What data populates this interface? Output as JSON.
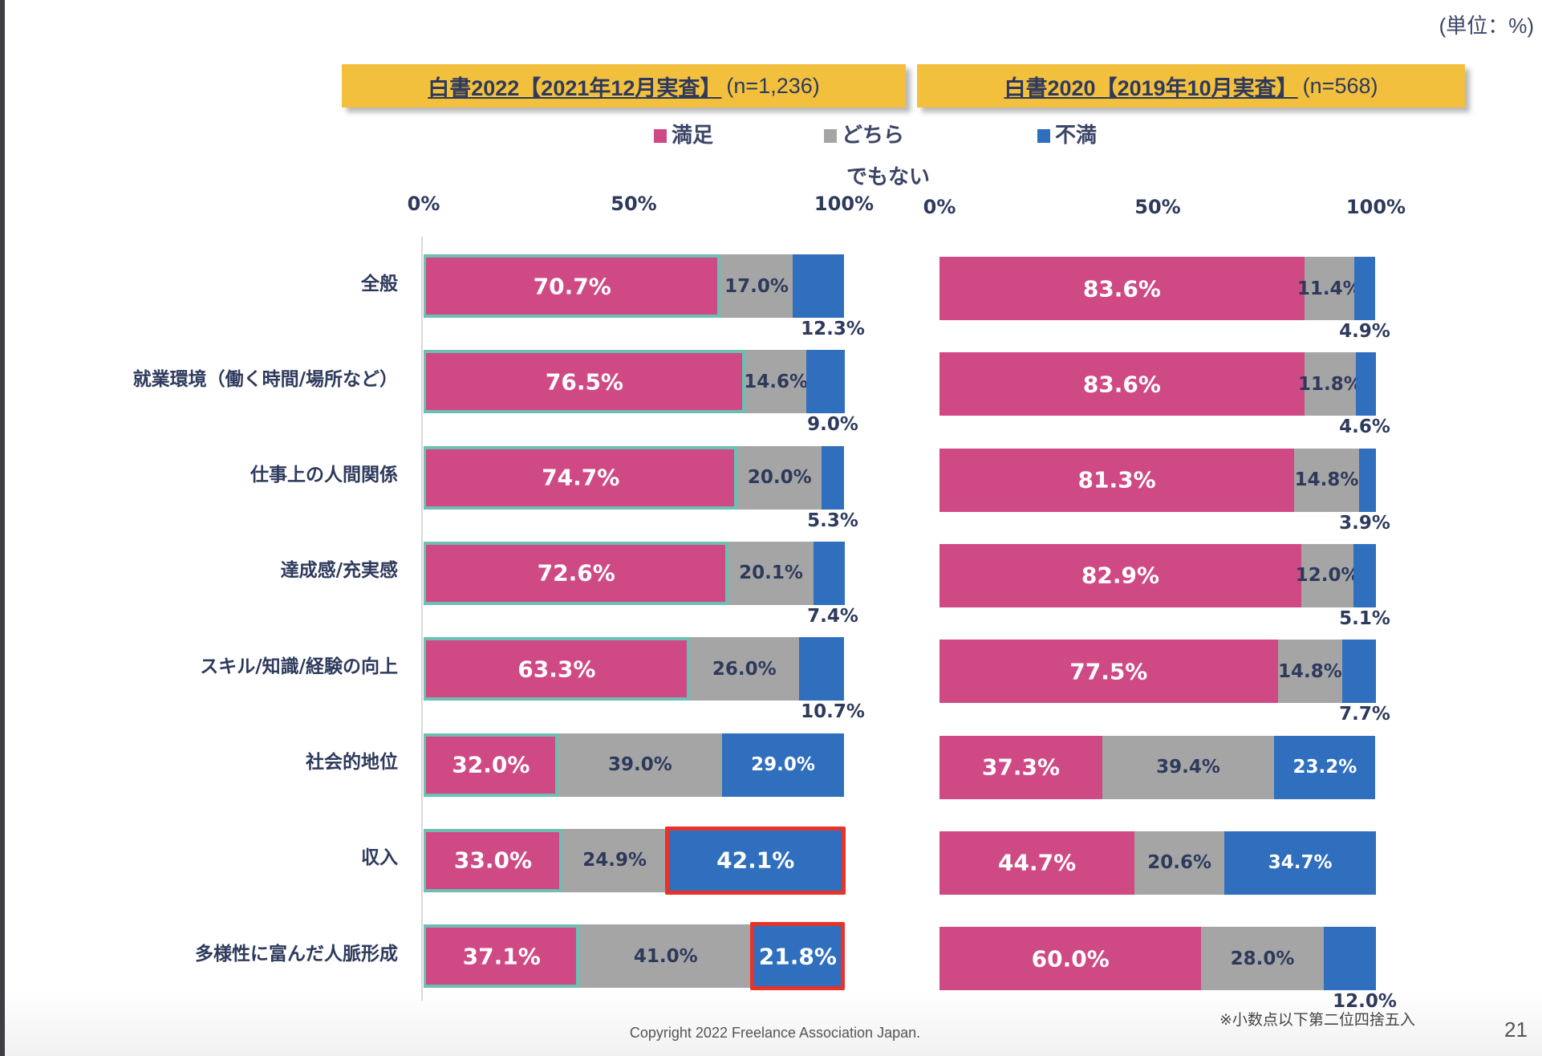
{
  "unit_label": "(単位：%)",
  "panels": [
    {
      "title": "白書2022【2021年12月実査】",
      "n": "(n=1,236)"
    },
    {
      "title": "白書2020【2019年10月実査】",
      "n": "(n=568)"
    }
  ],
  "legend": [
    {
      "label": "満足",
      "color": "#cf4a85"
    },
    {
      "label": "どちら",
      "sub": "でもない",
      "color": "#a5a5a5"
    },
    {
      "label": "不満",
      "color": "#2f6fbd"
    }
  ],
  "footer": {
    "copyright": "Copyright 2022 Freelance Association Japan.",
    "note": "※小数点以下第二位四捨五入",
    "page": "21"
  },
  "chart_data": [
    {
      "type": "bar",
      "orientation": "horizontal",
      "stacked": true,
      "title": "白書2022【2021年12月実査】(n=1,236)",
      "xlabel": "",
      "ylabel": "",
      "xlim": [
        0,
        100
      ],
      "x_ticks": [
        "0%",
        "50%",
        "100%"
      ],
      "categories": [
        "全般",
        "就業環境（働く時間/場所など）",
        "仕事上の人間関係",
        "達成感/充実感",
        "スキル/知識/経験の向上",
        "社会的地位",
        "収入",
        "多様性に富んだ人脈形成"
      ],
      "series": [
        {
          "name": "満足",
          "values": [
            70.7,
            76.5,
            74.7,
            72.6,
            63.3,
            32.0,
            33.0,
            37.1
          ]
        },
        {
          "name": "どちらでもない",
          "values": [
            17.0,
            14.6,
            20.0,
            20.1,
            26.0,
            39.0,
            24.9,
            41.0
          ]
        },
        {
          "name": "不満",
          "values": [
            12.3,
            9.0,
            5.3,
            7.4,
            10.7,
            29.0,
            42.1,
            21.8
          ]
        }
      ],
      "labels": [
        [
          "70.7%",
          "17.0%",
          "12.3%"
        ],
        [
          "76.5%",
          "14.6%",
          "9.0%"
        ],
        [
          "74.7%",
          "20.0%",
          "5.3%"
        ],
        [
          "72.6%",
          "20.1%",
          "7.4%"
        ],
        [
          "63.3%",
          "26.0%",
          "10.7%"
        ],
        [
          "32.0%",
          "39.0%",
          "29.0%"
        ],
        [
          "33.0%",
          "24.9%",
          "42.1%"
        ],
        [
          "37.1%",
          "41.0%",
          "21.8%"
        ]
      ],
      "annotations": [
        "満足 bars outlined in teal",
        "不満 bars for 収入 and 多様性に富んだ人脈形成 highlighted with red border"
      ],
      "legend": "top-center"
    },
    {
      "type": "bar",
      "orientation": "horizontal",
      "stacked": true,
      "title": "白書2020【2019年10月実査】(n=568)",
      "xlabel": "",
      "ylabel": "",
      "xlim": [
        0,
        100
      ],
      "x_ticks": [
        "0%",
        "50%",
        "100%"
      ],
      "categories": [
        "全般",
        "就業環境（働く時間/場所など）",
        "仕事上の人間関係",
        "達成感/充実感",
        "スキル/知識/経験の向上",
        "社会的地位",
        "収入",
        "多様性に富んだ人脈形成"
      ],
      "series": [
        {
          "name": "満足",
          "values": [
            83.6,
            83.6,
            81.3,
            82.9,
            77.5,
            37.3,
            44.7,
            60.0
          ]
        },
        {
          "name": "どちらでもない",
          "values": [
            11.4,
            11.8,
            14.8,
            12.0,
            14.8,
            39.4,
            20.6,
            28.0
          ]
        },
        {
          "name": "不満",
          "values": [
            4.9,
            4.6,
            3.9,
            5.1,
            7.7,
            23.2,
            34.7,
            12.0
          ]
        }
      ],
      "labels": [
        [
          "83.6%",
          "11.4%",
          "4.9%"
        ],
        [
          "83.6%",
          "11.8%",
          "4.6%"
        ],
        [
          "81.3%",
          "14.8%",
          "3.9%"
        ],
        [
          "82.9%",
          "12.0%",
          "5.1%"
        ],
        [
          "77.5%",
          "14.8%",
          "7.7%"
        ],
        [
          "37.3%",
          "39.4%",
          "23.2%"
        ],
        [
          "44.7%",
          "20.6%",
          "34.7%"
        ],
        [
          "60.0%",
          "28.0%",
          "12.0%"
        ]
      ],
      "legend": "top-center"
    }
  ]
}
